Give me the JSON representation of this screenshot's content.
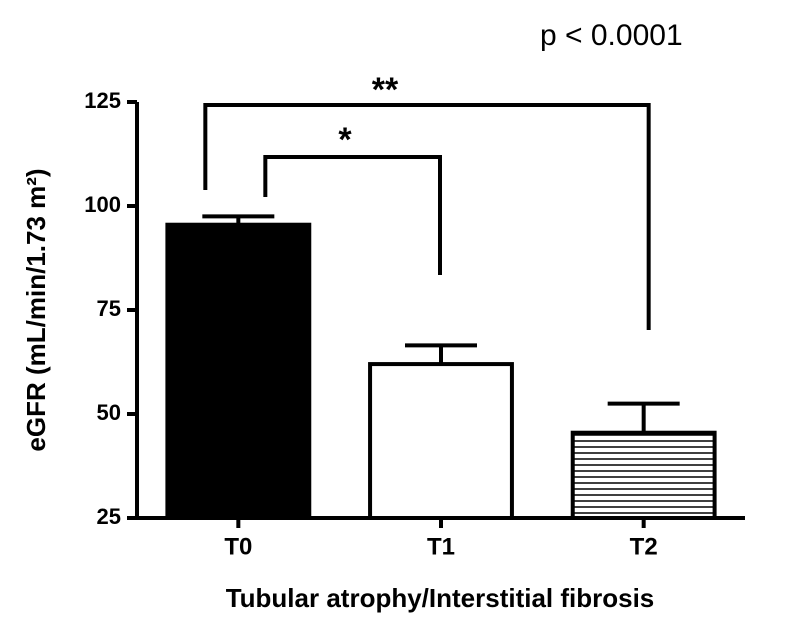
{
  "chart_data": {
    "type": "bar",
    "annotations": [
      "p < 0.0001",
      "**",
      "*"
    ],
    "y_label": "eGFR (mL/min/1.73 m²)",
    "x_label": "Tubular atrophy/Interstitial fibrosis",
    "categories": [
      "T0",
      "T1",
      "T2"
    ],
    "values": [
      95.5,
      62,
      45.5
    ],
    "errors": [
      2,
      4.5,
      7
    ],
    "fills": [
      "black",
      "white",
      "horizontal-lines"
    ],
    "ylim": [
      25,
      125
    ],
    "yticks": [
      25,
      50,
      75,
      100,
      125
    ],
    "grid": false
  }
}
